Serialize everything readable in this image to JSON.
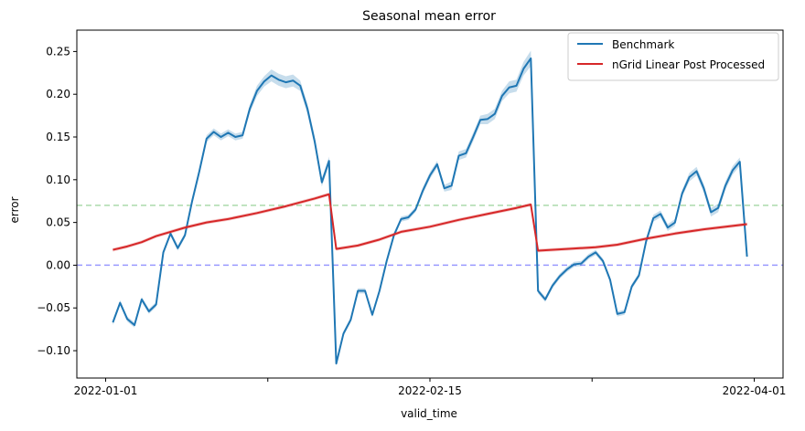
{
  "chart_data": {
    "type": "line",
    "title": "Seasonal mean error",
    "xlabel": "valid_time",
    "ylabel": "error",
    "x_ticks": [
      "2022-01-01",
      "2022-02-15",
      "2022-04-01"
    ],
    "y_ticks": [
      "−0.10",
      "−0.05",
      "0.00",
      "0.05",
      "0.10",
      "0.15",
      "0.20",
      "0.25"
    ],
    "y_tick_values": [
      -0.1,
      -0.05,
      0.0,
      0.05,
      0.1,
      0.15,
      0.2,
      0.25
    ],
    "xlim": [
      "2021-12-28",
      "2022-04-05"
    ],
    "ylim": [
      -0.132,
      0.275
    ],
    "grid": false,
    "legend_position": "top-right",
    "colors": {
      "benchmark": "#1f77b4",
      "ngrid": "#d62728",
      "hline_upper": "#2ca02c",
      "hline_zero": "#0000ff"
    },
    "horizontal_lines": [
      {
        "y": 0.07,
        "color": "#2ca02c",
        "style": "dashed"
      },
      {
        "y": 0.0,
        "color": "#0000ff",
        "style": "dashed"
      }
    ],
    "series": [
      {
        "name": "Benchmark",
        "x": [
          "2022-01-02",
          "2022-01-03",
          "2022-01-04",
          "2022-01-05",
          "2022-01-06",
          "2022-01-07",
          "2022-01-08",
          "2022-01-09",
          "2022-01-10",
          "2022-01-11",
          "2022-01-12",
          "2022-01-13",
          "2022-01-14",
          "2022-01-15",
          "2022-01-16",
          "2022-01-17",
          "2022-01-18",
          "2022-01-19",
          "2022-01-20",
          "2022-01-21",
          "2022-01-22",
          "2022-01-23",
          "2022-01-24",
          "2022-01-25",
          "2022-01-26",
          "2022-01-27",
          "2022-01-28",
          "2022-01-29",
          "2022-01-30",
          "2022-01-31",
          "2022-02-01",
          "2022-02-02",
          "2022-02-03",
          "2022-02-04",
          "2022-02-05",
          "2022-02-06",
          "2022-02-07",
          "2022-02-08",
          "2022-02-09",
          "2022-02-10",
          "2022-02-11",
          "2022-02-12",
          "2022-02-13",
          "2022-02-14",
          "2022-02-15",
          "2022-02-16",
          "2022-02-17",
          "2022-02-18",
          "2022-02-19",
          "2022-02-20",
          "2022-02-21",
          "2022-02-22",
          "2022-02-23",
          "2022-02-24",
          "2022-02-25",
          "2022-02-26",
          "2022-02-27",
          "2022-02-28",
          "2022-03-01",
          "2022-03-02",
          "2022-03-03",
          "2022-03-04",
          "2022-03-05",
          "2022-03-06",
          "2022-03-07",
          "2022-03-08",
          "2022-03-09",
          "2022-03-10",
          "2022-03-11",
          "2022-03-12",
          "2022-03-13",
          "2022-03-14",
          "2022-03-15",
          "2022-03-16",
          "2022-03-17",
          "2022-03-18",
          "2022-03-19",
          "2022-03-20",
          "2022-03-21",
          "2022-03-22",
          "2022-03-23",
          "2022-03-24",
          "2022-03-25",
          "2022-03-26",
          "2022-03-27",
          "2022-03-28",
          "2022-03-29",
          "2022-03-30",
          "2022-03-31"
        ],
        "values": [
          -0.067,
          -0.044,
          -0.063,
          -0.07,
          -0.04,
          -0.054,
          -0.046,
          0.015,
          0.037,
          0.02,
          0.035,
          0.075,
          0.11,
          0.148,
          0.156,
          0.15,
          0.155,
          0.15,
          0.152,
          0.183,
          0.204,
          0.215,
          0.222,
          0.217,
          0.214,
          0.216,
          0.21,
          0.183,
          0.145,
          0.097,
          0.122,
          -0.115,
          -0.08,
          -0.064,
          -0.03,
          -0.03,
          -0.058,
          -0.03,
          0.005,
          0.035,
          0.054,
          0.056,
          0.065,
          0.087,
          0.105,
          0.118,
          0.09,
          0.093,
          0.128,
          0.131,
          0.15,
          0.17,
          0.171,
          0.177,
          0.198,
          0.208,
          0.21,
          0.23,
          0.242,
          -0.03,
          -0.04,
          -0.024,
          -0.013,
          -0.005,
          0.001,
          0.002,
          0.01,
          0.015,
          0.005,
          -0.017,
          -0.057,
          -0.055,
          -0.025,
          -0.012,
          0.028,
          0.055,
          0.06,
          0.044,
          0.05,
          0.084,
          0.103,
          0.11,
          0.09,
          0.062,
          0.067,
          0.093,
          0.111,
          0.121,
          0.01
        ],
        "ci_halfwidth": [
          0.003,
          0.003,
          0.003,
          0.003,
          0.003,
          0.003,
          0.003,
          0.003,
          0.003,
          0.003,
          0.003,
          0.004,
          0.004,
          0.004,
          0.004,
          0.004,
          0.004,
          0.004,
          0.004,
          0.005,
          0.006,
          0.006,
          0.007,
          0.007,
          0.007,
          0.007,
          0.006,
          0.006,
          0.006,
          0.005,
          0.005,
          0.003,
          0.003,
          0.003,
          0.003,
          0.003,
          0.003,
          0.003,
          0.003,
          0.003,
          0.003,
          0.003,
          0.003,
          0.004,
          0.004,
          0.004,
          0.004,
          0.005,
          0.005,
          0.005,
          0.005,
          0.005,
          0.006,
          0.006,
          0.006,
          0.007,
          0.007,
          0.008,
          0.009,
          0.003,
          0.003,
          0.003,
          0.003,
          0.003,
          0.003,
          0.003,
          0.003,
          0.003,
          0.003,
          0.003,
          0.003,
          0.003,
          0.003,
          0.003,
          0.004,
          0.004,
          0.004,
          0.004,
          0.004,
          0.004,
          0.005,
          0.005,
          0.005,
          0.005,
          0.005,
          0.005,
          0.005,
          0.005,
          0.005
        ]
      },
      {
        "name": "nGrid Linear Post Processed",
        "x": [
          "2022-01-02",
          "2022-01-04",
          "2022-01-06",
          "2022-01-08",
          "2022-01-10",
          "2022-01-12",
          "2022-01-15",
          "2022-01-18",
          "2022-01-22",
          "2022-01-26",
          "2022-01-30",
          "2022-02-01",
          "2022-02-02",
          "2022-02-05",
          "2022-02-08",
          "2022-02-11",
          "2022-02-15",
          "2022-02-19",
          "2022-02-23",
          "2022-02-27",
          "2022-03-01",
          "2022-03-02",
          "2022-03-06",
          "2022-03-10",
          "2022-03-13",
          "2022-03-17",
          "2022-03-21",
          "2022-03-25",
          "2022-03-31"
        ],
        "values": [
          0.018,
          0.022,
          0.027,
          0.034,
          0.039,
          0.044,
          0.05,
          0.054,
          0.061,
          0.069,
          0.078,
          0.083,
          0.019,
          0.023,
          0.03,
          0.039,
          0.045,
          0.053,
          0.06,
          0.067,
          0.071,
          0.017,
          0.019,
          0.021,
          0.024,
          0.031,
          0.037,
          0.042,
          0.048
        ],
        "ci_halfwidth": 0.002
      }
    ]
  }
}
